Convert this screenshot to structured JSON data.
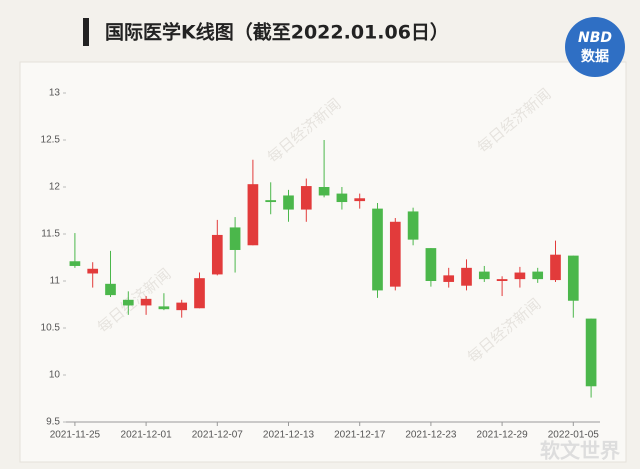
{
  "chart_data": {
    "type": "candlestick",
    "title": "国际医学K线图（截至2022.01.06日）",
    "logo": [
      "NBD",
      "数据"
    ],
    "watermark": "每日经济新闻",
    "corner_watermark": "软文世界",
    "categories": [
      "2021-11-25",
      null,
      null,
      null,
      "2021-12-01",
      null,
      null,
      null,
      "2021-12-07",
      null,
      null,
      null,
      "2021-12-13",
      null,
      null,
      null,
      "2021-12-17",
      null,
      null,
      null,
      "2021-12-23",
      null,
      null,
      null,
      "2021-12-29",
      null,
      null,
      null,
      "2022-01-05",
      null
    ],
    "open": [
      11.21,
      11.08,
      10.97,
      10.8,
      10.74,
      10.73,
      10.69,
      10.71,
      11.07,
      11.57,
      11.38,
      11.86,
      11.91,
      11.76,
      12.0,
      11.93,
      11.85,
      11.77,
      10.94,
      11.74,
      11.35,
      10.99,
      10.95,
      11.1,
      11.0,
      11.02,
      11.1,
      11.01,
      11.27,
      10.6
    ],
    "close": [
      11.16,
      11.13,
      10.85,
      10.74,
      10.81,
      10.7,
      10.77,
      11.03,
      11.49,
      11.33,
      12.03,
      11.84,
      11.76,
      12.01,
      11.91,
      11.84,
      11.88,
      10.9,
      11.63,
      11.44,
      11.0,
      11.06,
      11.14,
      11.02,
      11.02,
      11.09,
      11.02,
      11.28,
      10.79,
      9.88
    ],
    "high": [
      11.51,
      11.2,
      11.32,
      10.89,
      10.84,
      10.87,
      10.8,
      11.09,
      11.65,
      11.68,
      12.29,
      12.05,
      11.97,
      12.09,
      12.5,
      12.0,
      11.93,
      11.83,
      11.67,
      11.78,
      11.35,
      11.14,
      11.23,
      11.16,
      11.05,
      11.15,
      11.14,
      11.43,
      11.27,
      10.6
    ],
    "low": [
      11.14,
      10.93,
      10.83,
      10.64,
      10.64,
      10.69,
      10.61,
      10.71,
      11.06,
      11.09,
      11.38,
      11.71,
      11.63,
      11.63,
      11.89,
      11.76,
      11.77,
      10.82,
      10.9,
      11.38,
      10.94,
      10.93,
      10.9,
      10.99,
      10.84,
      10.93,
      10.98,
      10.99,
      10.61,
      9.76
    ],
    "up_color": "#e23b3b",
    "down_color": "#4bb74b",
    "ylim": [
      9.5,
      13
    ],
    "yticks": [
      9.5,
      10,
      10.5,
      11,
      11.5,
      12,
      12.5,
      13
    ]
  }
}
